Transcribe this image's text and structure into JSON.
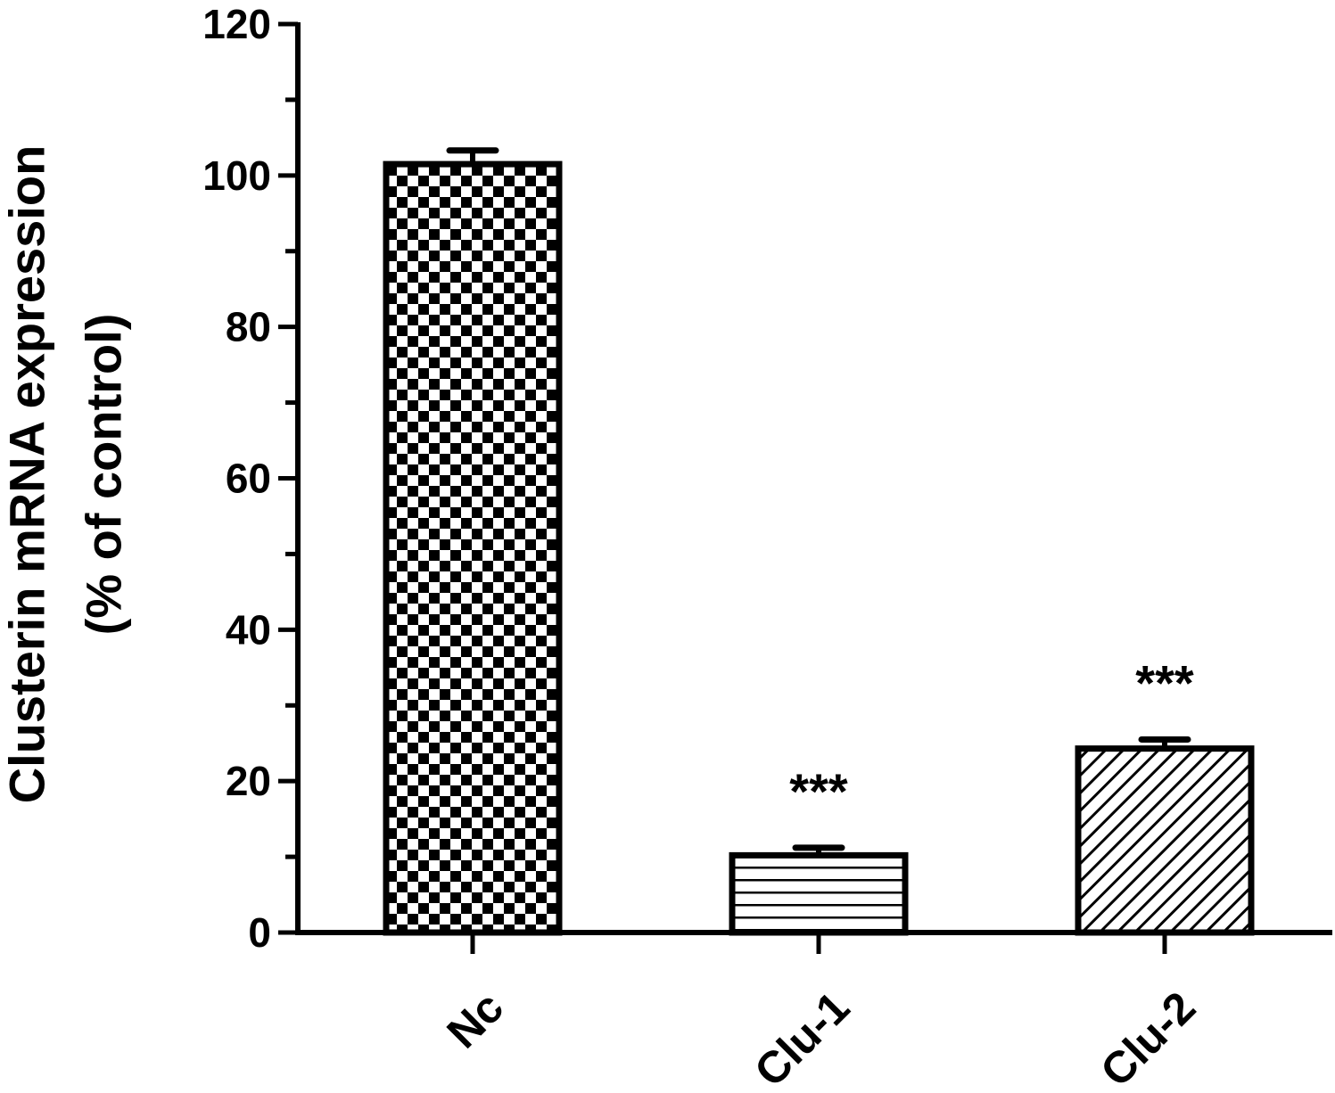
{
  "chart_data": {
    "type": "bar",
    "title": "",
    "xlabel": "",
    "ylabel_lines": [
      "Clusterin mRNA expression",
      "(% of control)"
    ],
    "categories": [
      "Nc",
      "Clu-1",
      "Clu-2"
    ],
    "values": [
      101.5,
      10.2,
      24.3
    ],
    "errors": [
      1.8,
      1.0,
      1.2
    ],
    "significance": [
      "",
      "***",
      "***"
    ],
    "bar_patterns": [
      "checkerboard",
      "horizontal-lines",
      "diagonal-lines"
    ],
    "ylim": [
      0,
      120
    ],
    "yticks": [
      0,
      20,
      40,
      60,
      80,
      100,
      120
    ],
    "y_minor_step": 10,
    "grid": false,
    "legend": "none",
    "colors": {
      "bar_stroke": "#000000",
      "bar_fill": "#ffffff",
      "axis": "#000000"
    }
  }
}
